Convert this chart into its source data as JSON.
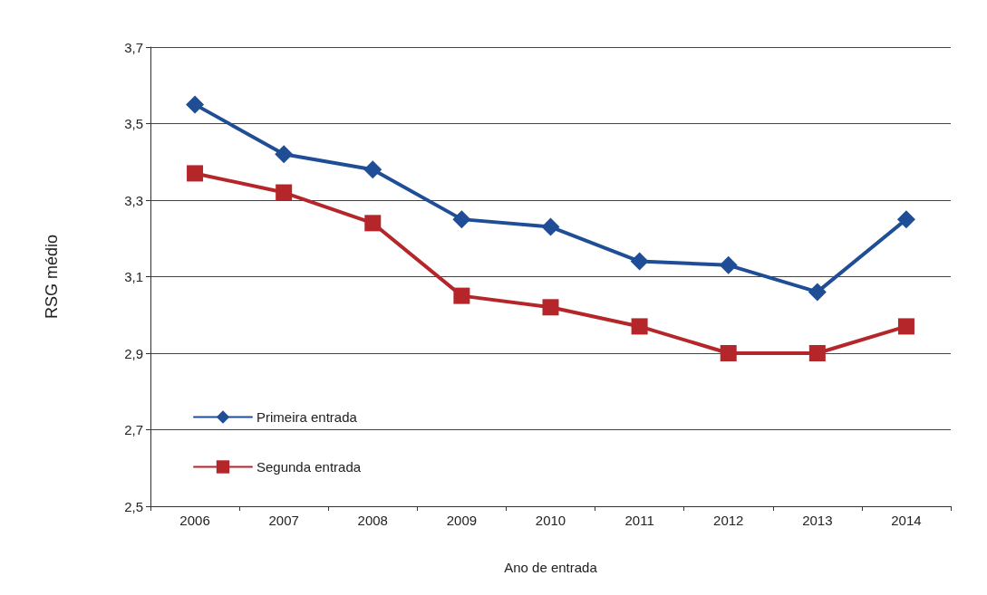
{
  "chart_data": {
    "type": "line",
    "xlabel": "Ano de entrada",
    "ylabel": "RSG médio",
    "categories": [
      "2006",
      "2007",
      "2008",
      "2009",
      "2010",
      "2011",
      "2012",
      "2013",
      "2014"
    ],
    "series": [
      {
        "name": "Primeira entrada",
        "color": "#1f4e96",
        "marker": "diamond",
        "values": [
          3.55,
          3.42,
          3.38,
          3.25,
          3.23,
          3.14,
          3.13,
          3.06,
          3.25
        ]
      },
      {
        "name": "Segunda entrada",
        "color": "#b5262b",
        "marker": "square",
        "values": [
          3.37,
          3.32,
          3.24,
          3.05,
          3.02,
          2.97,
          2.9,
          2.9,
          2.97
        ]
      }
    ],
    "ylim": [
      2.5,
      3.7
    ],
    "yticks": [
      {
        "value": 2.5,
        "label": "2,5"
      },
      {
        "value": 2.7,
        "label": "2,7"
      },
      {
        "value": 2.9,
        "label": "2,9"
      },
      {
        "value": 3.1,
        "label": "3,1"
      },
      {
        "value": 3.3,
        "label": "3,3"
      },
      {
        "value": 3.5,
        "label": "3,5"
      },
      {
        "value": 3.7,
        "label": "3,7"
      }
    ],
    "grid": "y",
    "legend": "bottom left",
    "line_style": "solid"
  }
}
